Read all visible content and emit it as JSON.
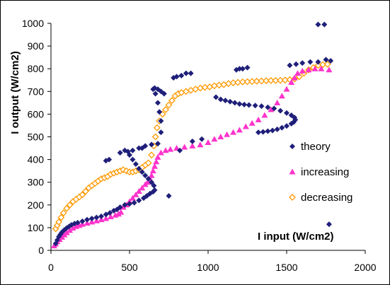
{
  "chart_data": {
    "type": "scatter",
    "xlabel": "I input (W/cm2)",
    "ylabel": "I output (W/cm2)",
    "xlim": [
      0,
      2000
    ],
    "ylim": [
      0,
      1000
    ],
    "xticks": [
      0,
      500,
      1000,
      1500,
      2000
    ],
    "yticks": [
      0,
      100,
      200,
      300,
      400,
      500,
      600,
      700,
      800,
      900,
      1000
    ],
    "grid": false,
    "legend_position": "right",
    "series": [
      {
        "name": "theory",
        "marker": "diamond",
        "color": "#1f1f7a",
        "points": [
          [
            30,
            30
          ],
          [
            40,
            45
          ],
          [
            50,
            60
          ],
          [
            60,
            70
          ],
          [
            70,
            80
          ],
          [
            85,
            90
          ],
          [
            100,
            98
          ],
          [
            115,
            105
          ],
          [
            130,
            112
          ],
          [
            150,
            118
          ],
          [
            170,
            122
          ],
          [
            200,
            128
          ],
          [
            230,
            135
          ],
          [
            260,
            140
          ],
          [
            290,
            145
          ],
          [
            320,
            150
          ],
          [
            350,
            158
          ],
          [
            375,
            165
          ],
          [
            400,
            175
          ],
          [
            420,
            180
          ],
          [
            440,
            190
          ],
          [
            470,
            200
          ],
          [
            500,
            205
          ],
          [
            530,
            210
          ],
          [
            560,
            220
          ],
          [
            590,
            230
          ],
          [
            610,
            240
          ],
          [
            630,
            250
          ],
          [
            650,
            258
          ],
          [
            660,
            265
          ],
          [
            655,
            285
          ],
          [
            640,
            300
          ],
          [
            620,
            315
          ],
          [
            600,
            330
          ],
          [
            580,
            345
          ],
          [
            560,
            360
          ],
          [
            540,
            380
          ],
          [
            520,
            400
          ],
          [
            500,
            420
          ],
          [
            490,
            435
          ],
          [
            520,
            440
          ],
          [
            560,
            450
          ],
          [
            600,
            460
          ],
          [
            640,
            466
          ],
          [
            680,
            470
          ],
          [
            700,
            520
          ],
          [
            700,
            570
          ],
          [
            690,
            610
          ],
          [
            680,
            650
          ],
          [
            665,
            690
          ],
          [
            650,
            710
          ],
          [
            660,
            715
          ],
          [
            680,
            710
          ],
          [
            700,
            700
          ],
          [
            720,
            690
          ],
          [
            780,
            760
          ],
          [
            800,
            765
          ],
          [
            830,
            770
          ],
          [
            860,
            780
          ],
          [
            890,
            780
          ],
          [
            1050,
            675
          ],
          [
            1080,
            665
          ],
          [
            1110,
            660
          ],
          [
            1140,
            655
          ],
          [
            1170,
            650
          ],
          [
            1200,
            645
          ],
          [
            1230,
            642
          ],
          [
            1260,
            640
          ],
          [
            1300,
            638
          ],
          [
            1340,
            635
          ],
          [
            1380,
            630
          ],
          [
            1420,
            625
          ],
          [
            1460,
            615
          ],
          [
            1500,
            605
          ],
          [
            1530,
            595
          ],
          [
            1550,
            585
          ],
          [
            1555,
            575
          ],
          [
            1545,
            565
          ],
          [
            1530,
            558
          ],
          [
            1500,
            548
          ],
          [
            1470,
            540
          ],
          [
            1440,
            533
          ],
          [
            1410,
            528
          ],
          [
            1380,
            525
          ],
          [
            1350,
            522
          ],
          [
            1320,
            520
          ],
          [
            1180,
            795
          ],
          [
            1200,
            800
          ],
          [
            1220,
            800
          ],
          [
            1250,
            805
          ],
          [
            1520,
            815
          ],
          [
            1560,
            820
          ],
          [
            1600,
            825
          ],
          [
            1650,
            830
          ],
          [
            1700,
            830
          ],
          [
            1750,
            840
          ],
          [
            1780,
            835
          ],
          [
            1700,
            995
          ],
          [
            1740,
            995
          ],
          [
            1770,
            115
          ],
          [
            350,
            395
          ],
          [
            370,
            400
          ],
          [
            440,
            430
          ],
          [
            470,
            440
          ],
          [
            580,
            450
          ],
          [
            750,
            240
          ],
          [
            820,
            440
          ],
          [
            900,
            480
          ],
          [
            960,
            490
          ]
        ]
      },
      {
        "name": "increasing",
        "marker": "triangle",
        "color": "#ff33cc",
        "points": [
          [
            20,
            20
          ],
          [
            30,
            28
          ],
          [
            40,
            38
          ],
          [
            55,
            48
          ],
          [
            70,
            58
          ],
          [
            85,
            68
          ],
          [
            100,
            78
          ],
          [
            120,
            88
          ],
          [
            140,
            98
          ],
          [
            160,
            105
          ],
          [
            180,
            110
          ],
          [
            200,
            115
          ],
          [
            230,
            120
          ],
          [
            260,
            125
          ],
          [
            290,
            130
          ],
          [
            320,
            135
          ],
          [
            350,
            140
          ],
          [
            380,
            148
          ],
          [
            410,
            155
          ],
          [
            430,
            160
          ],
          [
            445,
            168
          ],
          [
            460,
            190
          ],
          [
            480,
            200
          ],
          [
            500,
            215
          ],
          [
            520,
            230
          ],
          [
            540,
            245
          ],
          [
            560,
            260
          ],
          [
            580,
            275
          ],
          [
            600,
            290
          ],
          [
            615,
            300
          ],
          [
            630,
            315
          ],
          [
            640,
            330
          ],
          [
            650,
            350
          ],
          [
            660,
            370
          ],
          [
            670,
            390
          ],
          [
            680,
            410
          ],
          [
            700,
            430
          ],
          [
            730,
            440
          ],
          [
            760,
            445
          ],
          [
            800,
            450
          ],
          [
            850,
            455
          ],
          [
            900,
            460
          ],
          [
            950,
            465
          ],
          [
            1000,
            475
          ],
          [
            1040,
            490
          ],
          [
            1080,
            500
          ],
          [
            1120,
            510
          ],
          [
            1160,
            520
          ],
          [
            1200,
            530
          ],
          [
            1240,
            545
          ],
          [
            1280,
            560
          ],
          [
            1320,
            575
          ],
          [
            1360,
            595
          ],
          [
            1400,
            620
          ],
          [
            1440,
            650
          ],
          [
            1470,
            680
          ],
          [
            1500,
            710
          ],
          [
            1530,
            740
          ],
          [
            1550,
            760
          ],
          [
            1570,
            780
          ],
          [
            1600,
            790
          ],
          [
            1640,
            795
          ],
          [
            1680,
            800
          ],
          [
            1720,
            800
          ],
          [
            1770,
            795
          ]
        ]
      },
      {
        "name": "decreasing",
        "marker": "diamond-open",
        "color": "#ff9900",
        "points": [
          [
            30,
            95
          ],
          [
            40,
            110
          ],
          [
            50,
            125
          ],
          [
            65,
            145
          ],
          [
            80,
            165
          ],
          [
            100,
            185
          ],
          [
            120,
            200
          ],
          [
            140,
            215
          ],
          [
            160,
            225
          ],
          [
            180,
            235
          ],
          [
            200,
            245
          ],
          [
            220,
            260
          ],
          [
            240,
            275
          ],
          [
            260,
            285
          ],
          [
            280,
            295
          ],
          [
            300,
            305
          ],
          [
            320,
            315
          ],
          [
            340,
            320
          ],
          [
            360,
            325
          ],
          [
            380,
            335
          ],
          [
            400,
            340
          ],
          [
            420,
            345
          ],
          [
            440,
            350
          ],
          [
            460,
            355
          ],
          [
            480,
            350
          ],
          [
            500,
            345
          ],
          [
            520,
            345
          ],
          [
            540,
            350
          ],
          [
            560,
            355
          ],
          [
            580,
            365
          ],
          [
            600,
            375
          ],
          [
            620,
            385
          ],
          [
            640,
            420
          ],
          [
            655,
            460
          ],
          [
            665,
            500
          ],
          [
            675,
            540
          ],
          [
            690,
            570
          ],
          [
            710,
            600
          ],
          [
            730,
            620
          ],
          [
            750,
            640
          ],
          [
            770,
            660
          ],
          [
            790,
            680
          ],
          [
            810,
            690
          ],
          [
            830,
            695
          ],
          [
            860,
            700
          ],
          [
            890,
            705
          ],
          [
            920,
            710
          ],
          [
            950,
            715
          ],
          [
            980,
            718
          ],
          [
            1010,
            720
          ],
          [
            1040,
            725
          ],
          [
            1070,
            728
          ],
          [
            1100,
            730
          ],
          [
            1130,
            735
          ],
          [
            1160,
            738
          ],
          [
            1190,
            740
          ],
          [
            1220,
            742
          ],
          [
            1250,
            743
          ],
          [
            1280,
            744
          ],
          [
            1310,
            745
          ],
          [
            1340,
            746
          ],
          [
            1370,
            747
          ],
          [
            1400,
            748
          ],
          [
            1430,
            748
          ],
          [
            1460,
            749
          ],
          [
            1490,
            750
          ],
          [
            1520,
            752
          ],
          [
            1550,
            755
          ],
          [
            1580,
            765
          ],
          [
            1610,
            780
          ],
          [
            1640,
            795
          ],
          [
            1670,
            805
          ],
          [
            1700,
            815
          ],
          [
            1730,
            818
          ],
          [
            1760,
            820
          ]
        ]
      }
    ]
  }
}
